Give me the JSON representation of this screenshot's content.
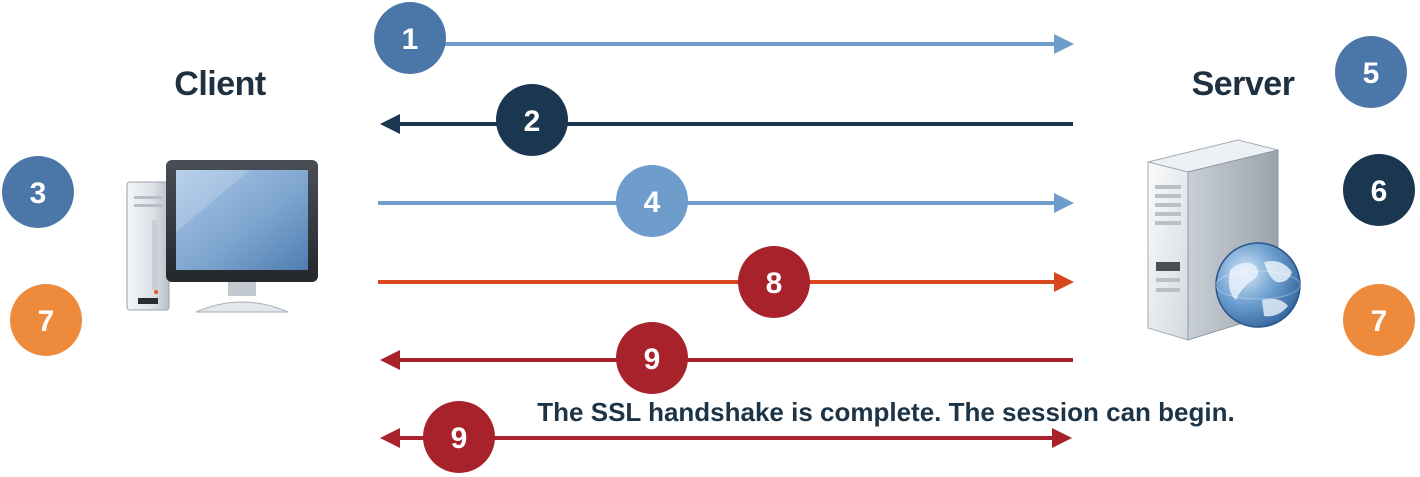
{
  "colors": {
    "blue": "#4a76a8",
    "light_blue": "#6e9ccb",
    "navy": "#1a3650",
    "orange": "#ee8a3c",
    "red": "#a8222c",
    "orange_red": "#d9471f",
    "label_text": "#1f3040"
  },
  "labels": {
    "client": "Client",
    "server": "Server"
  },
  "caption": "The SSL handshake is complete. The session can begin.",
  "icons": {
    "client": "desktop-computer-icon",
    "server": "server-tower-with-globe-icon"
  },
  "side_badges": [
    {
      "number": "3",
      "color": "blue",
      "side": "client"
    },
    {
      "number": "7",
      "color": "orange",
      "side": "client"
    },
    {
      "number": "5",
      "color": "blue",
      "side": "server"
    },
    {
      "number": "6",
      "color": "navy",
      "side": "server"
    },
    {
      "number": "7",
      "color": "orange",
      "side": "server"
    }
  ],
  "messages": [
    {
      "number": "1",
      "direction": "client-to-server",
      "line_color": "light_blue",
      "badge_color": "blue"
    },
    {
      "number": "2",
      "direction": "server-to-client",
      "line_color": "navy",
      "badge_color": "navy"
    },
    {
      "number": "4",
      "direction": "client-to-server",
      "line_color": "light_blue",
      "badge_color": "light_blue"
    },
    {
      "number": "8",
      "direction": "client-to-server",
      "line_color": "orange_red",
      "badge_color": "red"
    },
    {
      "number": "9",
      "direction": "server-to-client",
      "line_color": "red",
      "badge_color": "red"
    },
    {
      "number": "9",
      "direction": "bidirectional",
      "line_color": "red",
      "badge_color": "red"
    }
  ]
}
